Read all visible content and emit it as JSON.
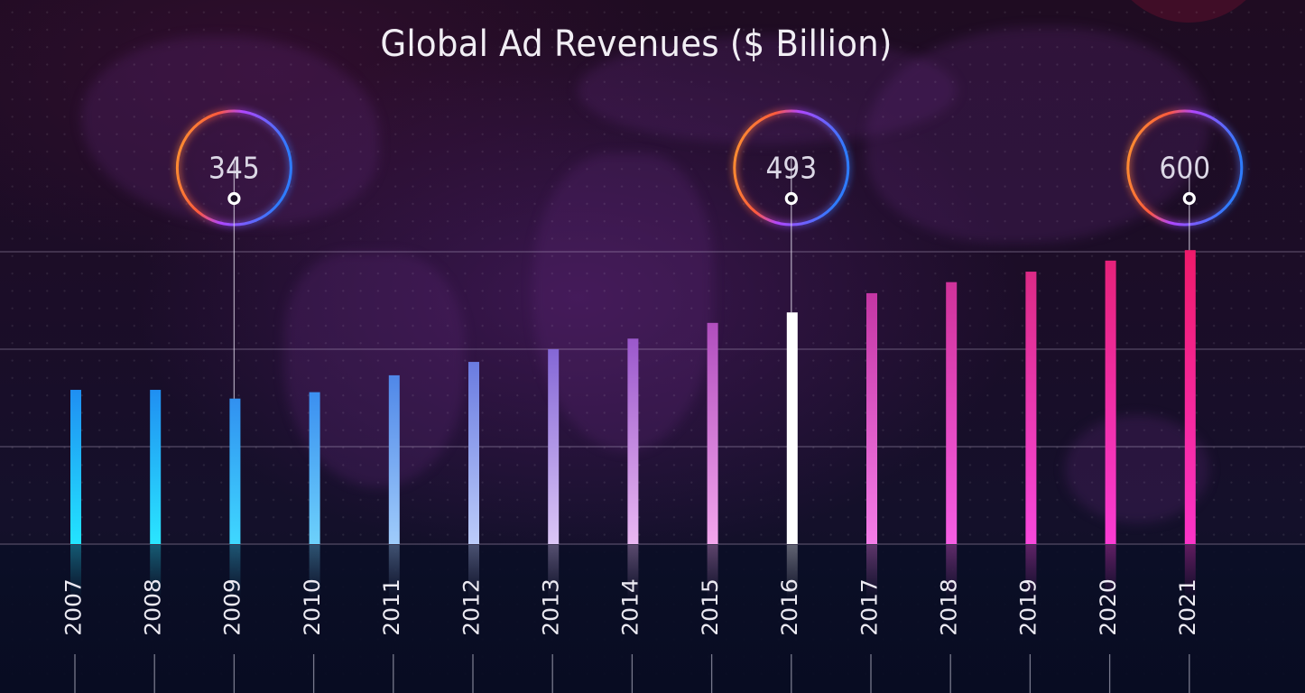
{
  "chart_data": {
    "type": "bar",
    "title": "Global Ad Revenues ($ Billion)",
    "xlabel": "",
    "ylabel": "",
    "categories": [
      "2007",
      "2008",
      "2009",
      "2010",
      "2011",
      "2012",
      "2013",
      "2014",
      "2015",
      "2016",
      "2017",
      "2018",
      "2019",
      "2020",
      "2021"
    ],
    "values": [
      360,
      360,
      345,
      356,
      385,
      408,
      430,
      448,
      475,
      493,
      526,
      545,
      563,
      582,
      600
    ],
    "ylim": [
      95,
      625
    ],
    "grid": true,
    "legend": "none",
    "highlighted_index": 9,
    "annotations": [
      {
        "category": "2009",
        "label": "345"
      },
      {
        "category": "2016",
        "label": "493"
      },
      {
        "category": "2021",
        "label": "600"
      }
    ],
    "bar_colors": {
      "2007": [
        "#1f8ff2",
        "#23e4ff"
      ],
      "2008": [
        "#1f8ff2",
        "#2ae6ff"
      ],
      "2009": [
        "#3190f0",
        "#3fd8ff"
      ],
      "2010": [
        "#3b8ff0",
        "#6dd1fb"
      ],
      "2011": [
        "#4f87e8",
        "#9fccfb"
      ],
      "2012": [
        "#6a7be0",
        "#bcccfa"
      ],
      "2013": [
        "#8467d6",
        "#dcc6f6"
      ],
      "2014": [
        "#9a58cc",
        "#eab8f2"
      ],
      "2015": [
        "#b04ebe",
        "#f3a6ec"
      ],
      "2016": [
        "#ffffff",
        "#ffffff"
      ],
      "2017": [
        "#c436a4",
        "#f47de8"
      ],
      "2018": [
        "#d0329a",
        "#f65ee4"
      ],
      "2019": [
        "#dc2a86",
        "#f848dc"
      ],
      "2020": [
        "#e6227a",
        "#fa3cd4"
      ],
      "2021": [
        "#ef1a6a",
        "#fb34c8"
      ]
    }
  }
}
